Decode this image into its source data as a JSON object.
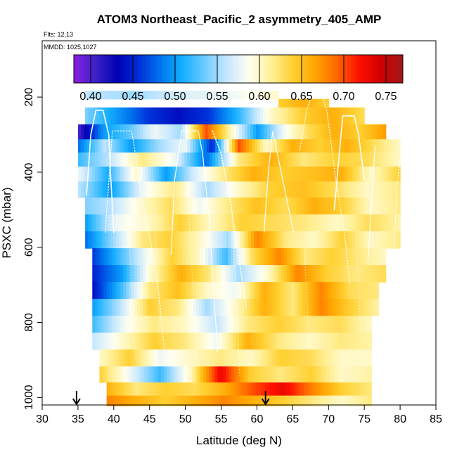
{
  "chart_data": {
    "type": "heatmap",
    "title": "ATOM3 Northeast_Pacific_2 asymmetry_405_AMP",
    "flights_label": "Flts: 12,13",
    "dates_label": "MMDD: 1025,1027",
    "xlabel": "Latitude (deg N)",
    "ylabel": "PSXC (mbar)",
    "xlim": [
      30,
      85
    ],
    "ylim": [
      1020,
      50
    ],
    "x_ticks": [
      30,
      35,
      40,
      45,
      50,
      55,
      60,
      65,
      70,
      75,
      80,
      85
    ],
    "y_ticks": [
      200,
      400,
      600,
      800,
      1000
    ],
    "colorbar": {
      "ticks": [
        "0.40",
        "0.45",
        "0.50",
        "0.55",
        "0.60",
        "0.65",
        "0.70",
        "0.75"
      ],
      "range": [
        0.38,
        0.77
      ],
      "colors": [
        "#8b1fe0",
        "#3a22c8",
        "#0000b5",
        "#0030d8",
        "#0078f0",
        "#16b0ff",
        "#70ccff",
        "#c8e8ff",
        "#fffff0",
        "#fff098",
        "#ffd030",
        "#ffa500",
        "#ff6600",
        "#ff1000",
        "#d10000",
        "#a01818"
      ]
    },
    "arrows_lat": [
      34.8,
      61.2
    ],
    "layers": [
      {
        "p": 205,
        "lat": [
          36,
          63
        ],
        "vals": [
          0.56,
          0.55,
          0.57,
          0.58,
          0.6
        ]
      },
      {
        "p": 205,
        "lat": [
          63,
          70
        ],
        "vals": [
          0.64,
          0.66,
          0.64
        ]
      },
      {
        "p": 250,
        "lat": [
          36,
          75
        ],
        "vals": [
          0.54,
          0.5,
          0.46,
          0.44,
          0.46,
          0.52,
          0.6,
          0.64,
          0.66,
          0.63
        ]
      },
      {
        "p": 295,
        "lat": [
          35,
          78
        ],
        "vals": [
          0.4,
          0.5,
          0.53,
          0.58,
          0.55,
          0.7,
          0.6,
          0.5,
          0.58,
          0.63,
          0.66,
          0.64,
          0.67
        ]
      },
      {
        "p": 330,
        "lat": [
          35,
          80
        ],
        "vals": [
          0.48,
          0.56,
          0.5,
          0.55,
          0.58,
          0.45,
          0.7,
          0.6,
          0.66,
          0.64,
          0.66,
          0.63,
          0.6
        ]
      },
      {
        "p": 365,
        "lat": [
          35,
          80
        ],
        "vals": [
          0.52,
          0.56,
          0.62,
          0.58,
          0.48,
          0.62,
          0.66,
          0.62,
          0.64,
          0.63,
          0.6
        ]
      },
      {
        "p": 405,
        "lat": [
          35,
          80
        ],
        "vals": [
          0.58,
          0.51,
          0.6,
          0.5,
          0.57,
          0.62,
          0.66,
          0.64,
          0.65,
          0.66,
          0.6,
          0.64
        ]
      },
      {
        "p": 445,
        "lat": [
          35,
          80
        ],
        "vals": [
          0.56,
          0.5,
          0.58,
          0.62,
          0.55,
          0.6,
          0.64,
          0.65,
          0.63,
          0.6,
          0.62
        ]
      },
      {
        "p": 490,
        "lat": [
          36,
          80
        ],
        "vals": [
          0.54,
          0.56,
          0.6,
          0.63,
          0.58,
          0.62,
          0.65,
          0.63,
          0.66,
          0.64,
          0.6,
          0.62
        ]
      },
      {
        "p": 535,
        "lat": [
          36,
          80
        ],
        "vals": [
          0.5,
          0.58,
          0.6,
          0.64,
          0.6,
          0.64,
          0.63,
          0.62,
          0.6,
          0.63,
          0.61
        ]
      },
      {
        "p": 580,
        "lat": [
          36,
          80
        ],
        "vals": [
          0.48,
          0.55,
          0.62,
          0.64,
          0.6,
          0.55,
          0.68,
          0.62,
          0.6,
          0.64,
          0.6,
          0.62
        ]
      },
      {
        "p": 625,
        "lat": [
          37,
          78
        ],
        "vals": [
          0.46,
          0.52,
          0.58,
          0.64,
          0.6,
          0.52,
          0.63,
          0.68,
          0.62,
          0.64,
          0.62,
          0.6
        ]
      },
      {
        "p": 670,
        "lat": [
          37,
          78
        ],
        "vals": [
          0.45,
          0.5,
          0.6,
          0.66,
          0.62,
          0.55,
          0.6,
          0.68,
          0.64,
          0.62,
          0.63
        ]
      },
      {
        "p": 715,
        "lat": [
          37,
          77
        ],
        "vals": [
          0.44,
          0.52,
          0.62,
          0.65,
          0.6,
          0.58,
          0.66,
          0.62,
          0.68,
          0.63,
          0.62
        ]
      },
      {
        "p": 760,
        "lat": [
          37,
          77
        ],
        "vals": [
          0.5,
          0.56,
          0.64,
          0.62,
          0.55,
          0.6,
          0.66,
          0.62,
          0.68,
          0.64,
          0.61
        ]
      },
      {
        "p": 805,
        "lat": [
          37,
          76
        ],
        "vals": [
          0.52,
          0.58,
          0.62,
          0.6,
          0.56,
          0.62,
          0.64,
          0.62,
          0.63,
          0.6
        ]
      },
      {
        "p": 850,
        "lat": [
          37,
          76
        ],
        "vals": [
          0.56,
          0.6,
          0.64,
          0.62,
          0.58,
          0.66,
          0.62,
          0.6,
          0.62,
          0.61
        ]
      },
      {
        "p": 895,
        "lat": [
          38,
          76
        ],
        "vals": [
          0.6,
          0.64,
          0.58,
          0.6,
          0.62,
          0.6,
          0.64,
          0.63,
          0.6,
          0.6
        ]
      },
      {
        "p": 940,
        "lat": [
          38,
          76
        ],
        "vals": [
          0.64,
          0.58,
          0.52,
          0.6,
          0.73,
          0.64,
          0.62,
          0.64,
          0.6,
          0.61
        ]
      },
      {
        "p": 980,
        "lat": [
          39,
          76
        ],
        "vals": [
          0.66,
          0.62,
          0.64,
          0.63,
          0.66,
          0.7,
          0.73,
          0.68,
          0.64,
          0.62
        ]
      },
      {
        "p": 1010,
        "lat": [
          39,
          76
        ],
        "vals": [
          0.68,
          0.66,
          0.64,
          0.66,
          0.68,
          0.66,
          0.64,
          0.62,
          0.6,
          0.62
        ]
      }
    ]
  }
}
